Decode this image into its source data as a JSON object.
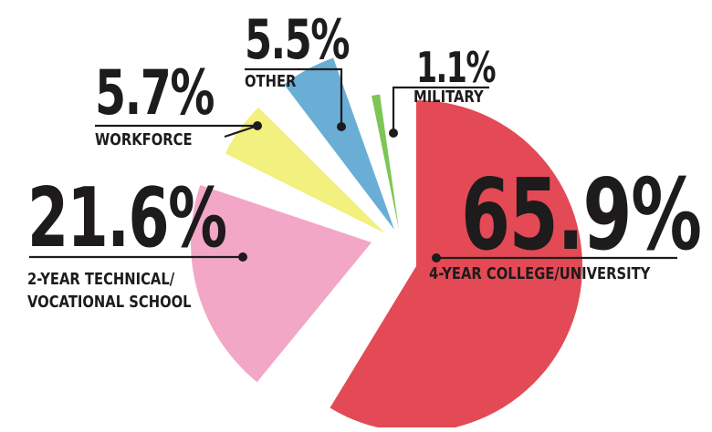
{
  "chart_data": {
    "type": "pie",
    "title": "",
    "slices": [
      {
        "name": "4-YEAR COLLEGE/UNIVERSITY",
        "percent_label": "65.9%",
        "value": 65.9,
        "color": "#e34a55"
      },
      {
        "name": "2-YEAR TECHNICAL/\nVOCATIONAL SCHOOL",
        "percent_label": "21.6%",
        "value": 21.6,
        "color": "#f2a7c7"
      },
      {
        "name": "WORKFORCE",
        "percent_label": "5.7%",
        "value": 5.7,
        "color": "#f2f07e"
      },
      {
        "name": "OTHER",
        "percent_label": "5.5%",
        "value": 5.5,
        "color": "#6aaed6"
      },
      {
        "name": "MILITARY",
        "percent_label": "1.1%",
        "value": 1.1,
        "color": "#7cc653"
      }
    ]
  }
}
